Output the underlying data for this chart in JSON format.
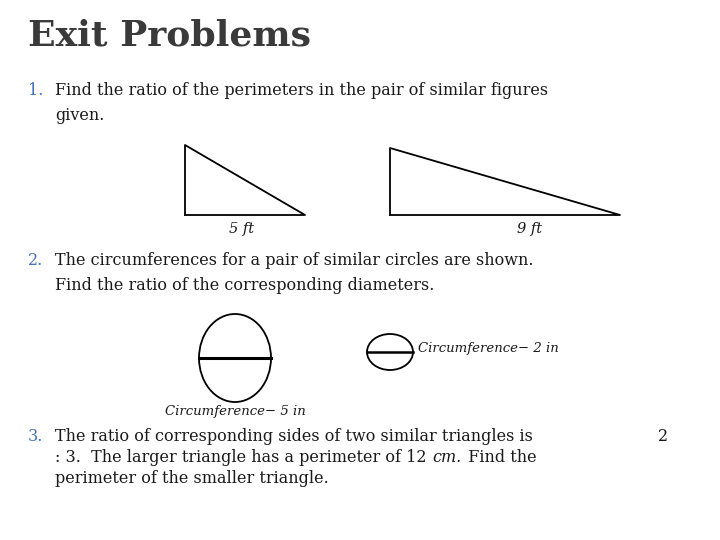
{
  "title": "Exit Problems",
  "title_fontsize": 26,
  "title_color": "#3a3a3a",
  "background_color": "#ffffff",
  "number_color": "#4472c4",
  "text_color": "#1a1a1a",
  "text_fontsize": 11.5,
  "label_5ft": "5 ft",
  "label_9ft": "9 ft",
  "circ1_label": "Circumference− 5 in",
  "circ2_label": "Circumference− 2 in",
  "item3_num_right": "2"
}
